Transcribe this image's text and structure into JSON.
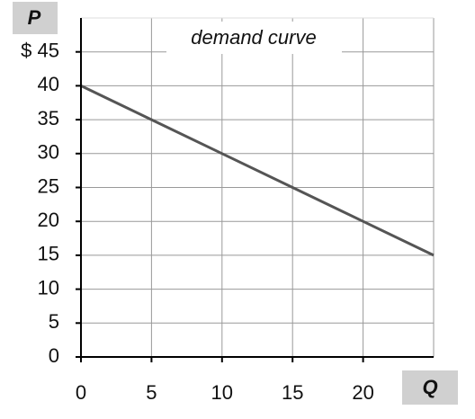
{
  "chart_data": {
    "type": "line",
    "title": "demand curve",
    "y_label": "P",
    "x_label": "Q",
    "x": [
      0,
      5,
      10,
      15,
      20,
      25
    ],
    "series": [
      {
        "color": "#555555",
        "values": [
          40,
          35,
          30,
          25,
          20,
          15
        ]
      }
    ],
    "xlim": [
      0,
      25
    ],
    "xticks": [
      0,
      5,
      10,
      15,
      20
    ],
    "ylim": [
      0,
      50
    ],
    "yticks": [
      0,
      5,
      10,
      15,
      20,
      25,
      30,
      35,
      40,
      {
        "value": 45,
        "label": "$ 45"
      }
    ],
    "grid": true
  }
}
